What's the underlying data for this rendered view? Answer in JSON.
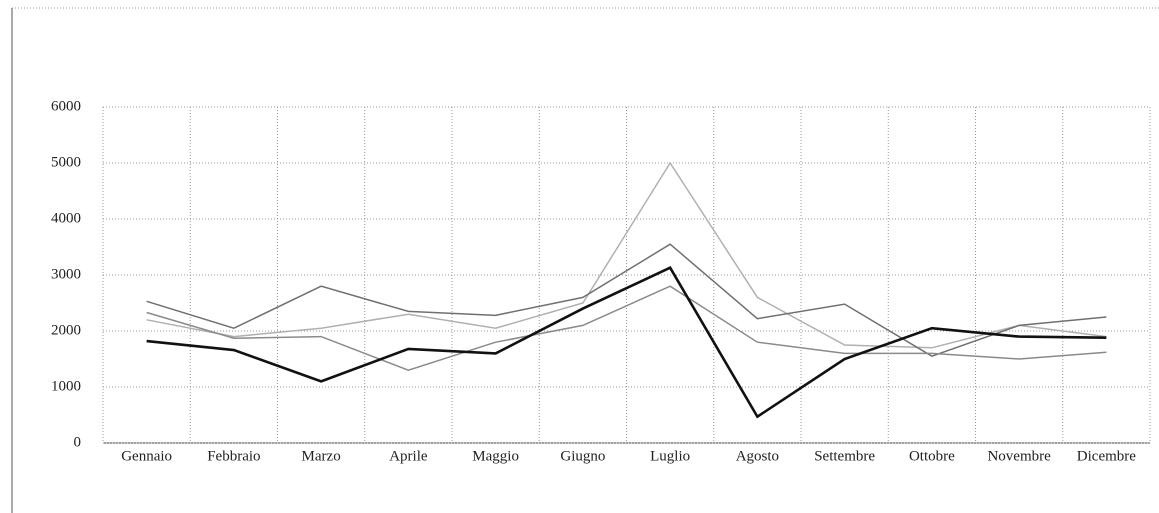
{
  "chart_data": {
    "type": "line",
    "categories": [
      "Gennaio",
      "Febbraio",
      "Marzo",
      "Aprile",
      "Maggio",
      "Giugno",
      "Luglio",
      "Agosto",
      "Settembre",
      "Ottobre",
      "Novembre",
      "Dicembre"
    ],
    "series": [
      {
        "color": "#b0b0b0",
        "values": [
          2200,
          1900,
          2050,
          2300,
          2050,
          2500,
          5000,
          2600,
          1750,
          1700,
          2100,
          1900
        ]
      },
      {
        "color": "#707070",
        "values": [
          2530,
          2050,
          2800,
          2350,
          2280,
          2600,
          3550,
          2220,
          2480,
          1550,
          2100,
          2250
        ]
      },
      {
        "color": "#8a8a8a",
        "values": [
          2330,
          1870,
          1900,
          1300,
          1800,
          2100,
          2800,
          1800,
          1600,
          1600,
          1500,
          1620
        ]
      },
      {
        "color": "#111111",
        "values": [
          1820,
          1660,
          1100,
          1680,
          1600,
          2400,
          3130,
          470,
          1500,
          2050,
          1900,
          1880
        ]
      }
    ],
    "ylim": [
      0,
      6000
    ],
    "yticks": [
      0,
      1000,
      2000,
      3000,
      4000,
      5000,
      6000
    ],
    "grid": true
  }
}
